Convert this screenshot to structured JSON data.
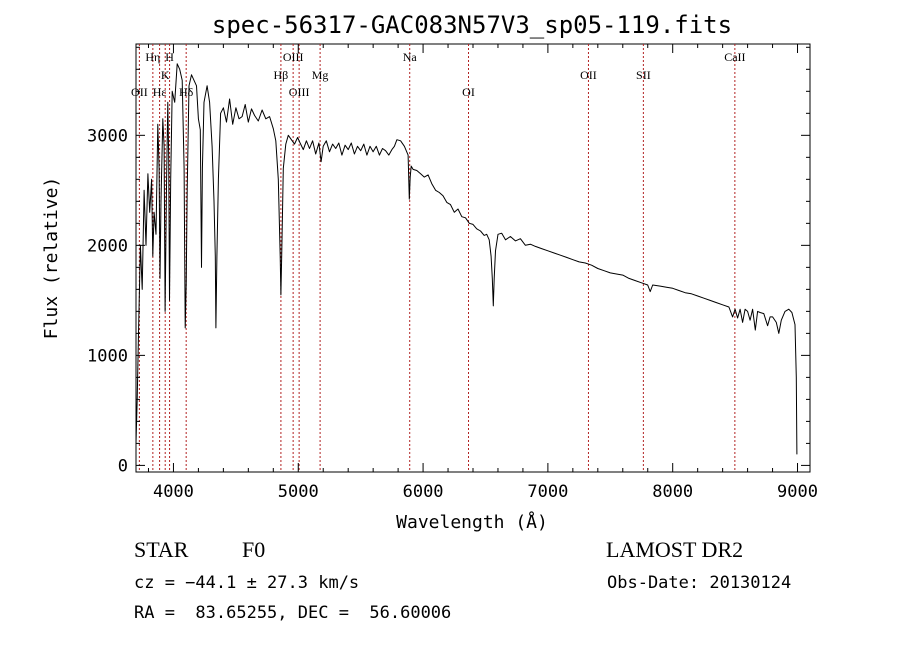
{
  "chart_data": {
    "type": "line",
    "title": "spec-56317-GAC083N57V3_sp05-119.fits",
    "xlabel": "Wavelength (Å)",
    "ylabel": "Flux (relative)",
    "xlim": [
      3700,
      9100
    ],
    "ylim": [
      -60,
      3830
    ],
    "x_ticks": [
      4000,
      5000,
      6000,
      7000,
      8000,
      9000
    ],
    "y_ticks": [
      0,
      1000,
      2000,
      3000
    ],
    "grid": false,
    "series": [
      {
        "color": "#000000",
        "points": [
          [
            3700,
            200
          ],
          [
            3710,
            600
          ],
          [
            3720,
            1200
          ],
          [
            3735,
            2000
          ],
          [
            3750,
            1600
          ],
          [
            3765,
            2500
          ],
          [
            3780,
            2000
          ],
          [
            3795,
            2650
          ],
          [
            3810,
            2300
          ],
          [
            3825,
            2600
          ],
          [
            3835,
            1900
          ],
          [
            3845,
            2300
          ],
          [
            3860,
            2100
          ],
          [
            3875,
            3100
          ],
          [
            3885,
            2700
          ],
          [
            3892,
            1700
          ],
          [
            3900,
            2400
          ],
          [
            3915,
            3150
          ],
          [
            3925,
            2900
          ],
          [
            3933,
            1400
          ],
          [
            3945,
            2600
          ],
          [
            3955,
            3300
          ],
          [
            3962,
            2800
          ],
          [
            3968,
            1500
          ],
          [
            3978,
            2600
          ],
          [
            3990,
            3400
          ],
          [
            4010,
            3300
          ],
          [
            4030,
            3650
          ],
          [
            4050,
            3600
          ],
          [
            4070,
            3500
          ],
          [
            4085,
            2700
          ],
          [
            4094,
            1250
          ],
          [
            4102,
            1650
          ],
          [
            4110,
            2500
          ],
          [
            4125,
            3450
          ],
          [
            4145,
            3550
          ],
          [
            4165,
            3500
          ],
          [
            4185,
            3450
          ],
          [
            4200,
            3150
          ],
          [
            4215,
            3050
          ],
          [
            4225,
            1800
          ],
          [
            4232,
            2700
          ],
          [
            4245,
            3300
          ],
          [
            4270,
            3450
          ],
          [
            4290,
            3300
          ],
          [
            4310,
            2900
          ],
          [
            4325,
            2400
          ],
          [
            4335,
            1900
          ],
          [
            4340,
            1250
          ],
          [
            4348,
            1900
          ],
          [
            4360,
            2600
          ],
          [
            4378,
            3200
          ],
          [
            4400,
            3250
          ],
          [
            4425,
            3120
          ],
          [
            4450,
            3330
          ],
          [
            4475,
            3100
          ],
          [
            4500,
            3250
          ],
          [
            4525,
            3150
          ],
          [
            4550,
            3170
          ],
          [
            4575,
            3280
          ],
          [
            4600,
            3120
          ],
          [
            4625,
            3240
          ],
          [
            4650,
            3180
          ],
          [
            4680,
            3130
          ],
          [
            4710,
            3230
          ],
          [
            4740,
            3150
          ],
          [
            4770,
            3170
          ],
          [
            4800,
            3060
          ],
          [
            4820,
            2950
          ],
          [
            4840,
            2600
          ],
          [
            4855,
            1900
          ],
          [
            4861,
            1550
          ],
          [
            4868,
            1950
          ],
          [
            4880,
            2700
          ],
          [
            4900,
            2920
          ],
          [
            4920,
            3000
          ],
          [
            4945,
            2960
          ],
          [
            4970,
            2920
          ],
          [
            4995,
            2980
          ],
          [
            5015,
            2930
          ],
          [
            5040,
            2870
          ],
          [
            5065,
            2950
          ],
          [
            5090,
            2880
          ],
          [
            5115,
            2950
          ],
          [
            5140,
            2830
          ],
          [
            5165,
            2930
          ],
          [
            5183,
            2760
          ],
          [
            5200,
            2900
          ],
          [
            5225,
            2950
          ],
          [
            5250,
            2850
          ],
          [
            5275,
            2920
          ],
          [
            5300,
            2880
          ],
          [
            5325,
            2930
          ],
          [
            5350,
            2820
          ],
          [
            5375,
            2910
          ],
          [
            5400,
            2870
          ],
          [
            5425,
            2930
          ],
          [
            5450,
            2830
          ],
          [
            5475,
            2900
          ],
          [
            5500,
            2860
          ],
          [
            5525,
            2920
          ],
          [
            5550,
            2820
          ],
          [
            5575,
            2900
          ],
          [
            5600,
            2850
          ],
          [
            5625,
            2900
          ],
          [
            5650,
            2820
          ],
          [
            5675,
            2880
          ],
          [
            5700,
            2860
          ],
          [
            5725,
            2820
          ],
          [
            5750,
            2870
          ],
          [
            5770,
            2900
          ],
          [
            5790,
            2960
          ],
          [
            5820,
            2950
          ],
          [
            5850,
            2900
          ],
          [
            5880,
            2820
          ],
          [
            5890,
            2420
          ],
          [
            5897,
            2620
          ],
          [
            5905,
            2720
          ],
          [
            5920,
            2690
          ],
          [
            5950,
            2680
          ],
          [
            5980,
            2650
          ],
          [
            6010,
            2620
          ],
          [
            6040,
            2640
          ],
          [
            6070,
            2560
          ],
          [
            6100,
            2500
          ],
          [
            6130,
            2480
          ],
          [
            6160,
            2450
          ],
          [
            6190,
            2390
          ],
          [
            6220,
            2370
          ],
          [
            6250,
            2300
          ],
          [
            6280,
            2330
          ],
          [
            6310,
            2260
          ],
          [
            6340,
            2250
          ],
          [
            6370,
            2200
          ],
          [
            6400,
            2190
          ],
          [
            6430,
            2150
          ],
          [
            6460,
            2130
          ],
          [
            6490,
            2090
          ],
          [
            6510,
            2100
          ],
          [
            6530,
            2050
          ],
          [
            6545,
            1900
          ],
          [
            6555,
            1700
          ],
          [
            6563,
            1450
          ],
          [
            6570,
            1700
          ],
          [
            6580,
            1950
          ],
          [
            6600,
            2100
          ],
          [
            6630,
            2110
          ],
          [
            6660,
            2050
          ],
          [
            6700,
            2080
          ],
          [
            6740,
            2040
          ],
          [
            6780,
            2060
          ],
          [
            6820,
            2000
          ],
          [
            6860,
            2010
          ],
          [
            6900,
            1990
          ],
          [
            6950,
            1970
          ],
          [
            7000,
            1950
          ],
          [
            7050,
            1930
          ],
          [
            7100,
            1910
          ],
          [
            7150,
            1890
          ],
          [
            7200,
            1870
          ],
          [
            7250,
            1850
          ],
          [
            7300,
            1840
          ],
          [
            7350,
            1820
          ],
          [
            7400,
            1790
          ],
          [
            7450,
            1770
          ],
          [
            7500,
            1750
          ],
          [
            7550,
            1740
          ],
          [
            7600,
            1730
          ],
          [
            7650,
            1700
          ],
          [
            7700,
            1680
          ],
          [
            7750,
            1660
          ],
          [
            7800,
            1640
          ],
          [
            7820,
            1580
          ],
          [
            7840,
            1640
          ],
          [
            7900,
            1630
          ],
          [
            7950,
            1620
          ],
          [
            8000,
            1610
          ],
          [
            8050,
            1590
          ],
          [
            8100,
            1570
          ],
          [
            8150,
            1560
          ],
          [
            8200,
            1540
          ],
          [
            8250,
            1520
          ],
          [
            8300,
            1500
          ],
          [
            8350,
            1480
          ],
          [
            8400,
            1460
          ],
          [
            8450,
            1440
          ],
          [
            8480,
            1350
          ],
          [
            8500,
            1420
          ],
          [
            8520,
            1340
          ],
          [
            8540,
            1420
          ],
          [
            8560,
            1300
          ],
          [
            8580,
            1420
          ],
          [
            8600,
            1400
          ],
          [
            8620,
            1320
          ],
          [
            8640,
            1420
          ],
          [
            8662,
            1230
          ],
          [
            8680,
            1400
          ],
          [
            8700,
            1390
          ],
          [
            8730,
            1380
          ],
          [
            8760,
            1270
          ],
          [
            8780,
            1350
          ],
          [
            8800,
            1350
          ],
          [
            8830,
            1300
          ],
          [
            8850,
            1200
          ],
          [
            8870,
            1320
          ],
          [
            8900,
            1400
          ],
          [
            8930,
            1420
          ],
          [
            8955,
            1390
          ],
          [
            8980,
            1280
          ],
          [
            8990,
            800
          ],
          [
            8995,
            100
          ]
        ]
      }
    ],
    "line_markers": [
      {
        "label": "OII",
        "x": 3727,
        "row": 3
      },
      {
        "label": "Hη",
        "x": 3835,
        "row": 1
      },
      {
        "label": "Hε",
        "x": 3889,
        "row": 3
      },
      {
        "label": "K",
        "x": 3934,
        "row": 2
      },
      {
        "label": "H",
        "x": 3969,
        "row": 1
      },
      {
        "label": "Hδ",
        "x": 4102,
        "row": 3
      },
      {
        "label": "Hβ",
        "x": 4861,
        "row": 2
      },
      {
        "label": "OIII",
        "x": 4959,
        "row": 1
      },
      {
        "label": "OIII",
        "x": 5007,
        "row": 3
      },
      {
        "label": "Mg",
        "x": 5175,
        "row": 2
      },
      {
        "label": "Na",
        "x": 5893,
        "row": 1
      },
      {
        "label": "OI",
        "x": 6364,
        "row": 3
      },
      {
        "label": "OII",
        "x": 7325,
        "row": 2
      },
      {
        "label": "SII",
        "x": 7765,
        "row": 2
      },
      {
        "label": "CaII",
        "x": 8498,
        "row": 1
      }
    ],
    "marker_color": "#b22222"
  },
  "info": {
    "object_class": "STAR",
    "subclass": "F0",
    "survey": "LAMOST DR2",
    "redshift_line": "cz = −44.1 ± 27.3 km/s",
    "obs_date": "Obs-Date: 20130124",
    "coords": "RA =  83.65255, DEC =  56.60006"
  }
}
